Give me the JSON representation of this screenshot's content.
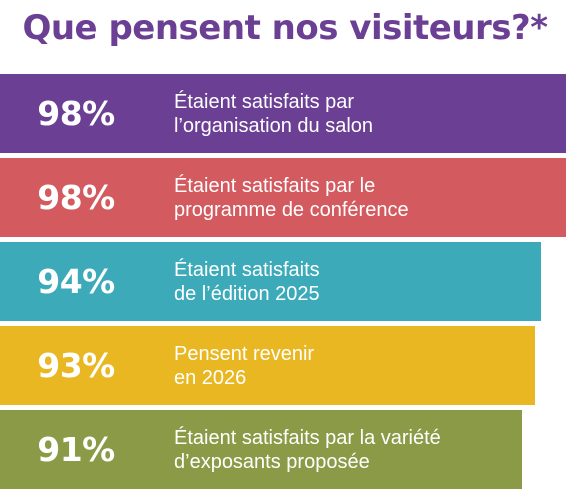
{
  "title": "Que pensent nos visiteurs?*",
  "chart_data": {
    "type": "bar",
    "orientation": "horizontal",
    "title": "Que pensent nos visiteurs?*",
    "unit": "%",
    "items": [
      {
        "value": 98,
        "label": "98%",
        "color": "#6b3f94",
        "lines": [
          "Étaient satisfaits par",
          "l’organisation du salon"
        ]
      },
      {
        "value": 98,
        "label": "98%",
        "color": "#d35a5e",
        "lines": [
          "Étaient satisfaits par le",
          "programme de conférence"
        ]
      },
      {
        "value": 94,
        "label": "94%",
        "color": "#3caab8",
        "lines": [
          "Étaient satisfaits",
          "de l’édition 2025"
        ]
      },
      {
        "value": 93,
        "label": "93%",
        "color": "#e9b722",
        "lines": [
          "Pensent revenir",
          "en 2026"
        ]
      },
      {
        "value": 91,
        "label": "91%",
        "color": "#8b9a46",
        "lines": [
          "Étaient satisfaits par la variété",
          "d’exposants proposée"
        ]
      }
    ]
  }
}
